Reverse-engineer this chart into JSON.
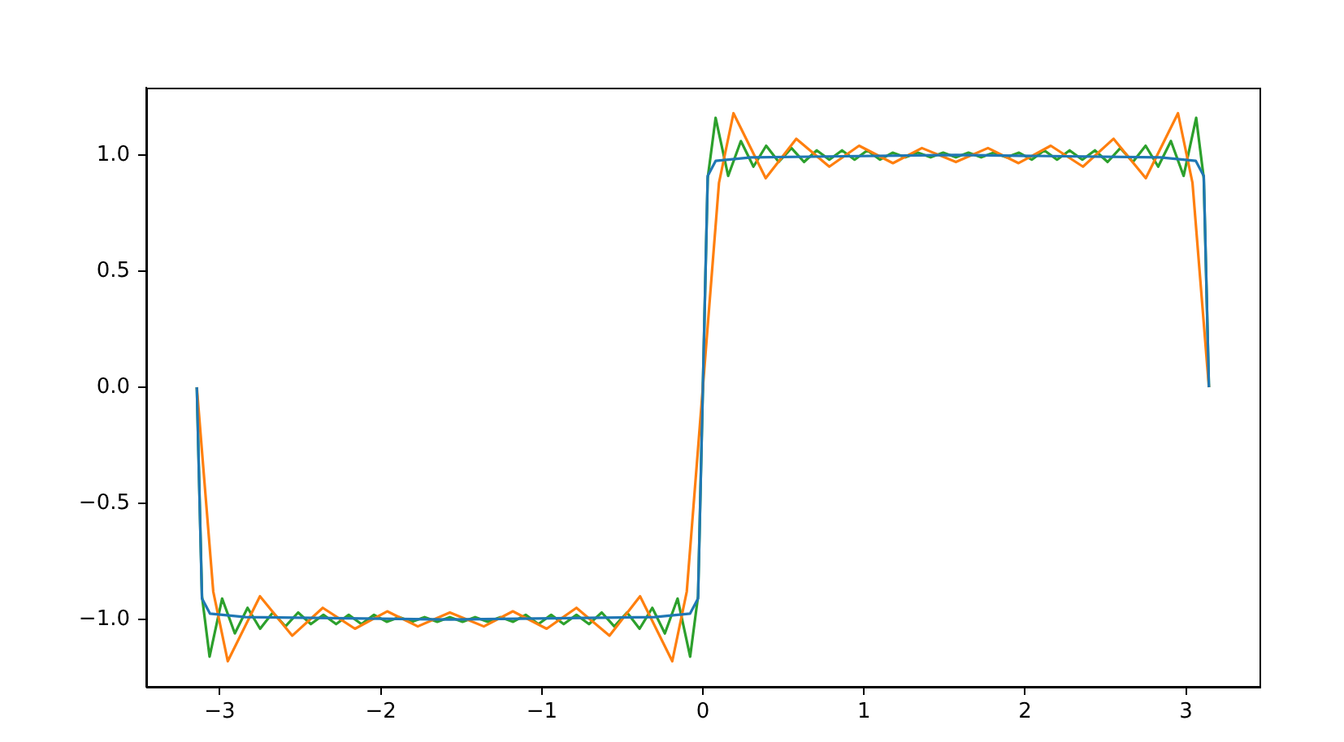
{
  "chart_data": {
    "type": "line",
    "xlim": [
      -3.456,
      3.456
    ],
    "ylim": [
      -1.29,
      1.29
    ],
    "xticks": [
      {
        "value": -3,
        "label": "−3"
      },
      {
        "value": -2,
        "label": "−2"
      },
      {
        "value": -1,
        "label": "−1"
      },
      0,
      1,
      2,
      3
    ],
    "yticks": [
      {
        "value": -1,
        "label": "−1.0"
      },
      {
        "value": -0.5,
        "label": "−0.5"
      },
      {
        "value": 0,
        "label": "0.0"
      },
      {
        "value": 0.5,
        "label": "0.5"
      },
      {
        "value": 1,
        "label": "1.0"
      }
    ],
    "grid": false,
    "legend": false,
    "marker": "none",
    "line_style": "solid",
    "series": [
      {
        "color": "#1f77b4",
        "x": [
          -3.142,
          -3.11,
          -3.06,
          -2.84,
          -1.571,
          -0.3,
          -0.08,
          -0.03,
          0,
          0.03,
          0.08,
          0.3,
          1.571,
          2.84,
          3.06,
          3.11,
          3.142
        ],
        "values": [
          0,
          -0.91,
          -0.975,
          -0.99,
          -1,
          -0.99,
          -0.975,
          -0.91,
          0,
          0.91,
          0.975,
          0.99,
          1,
          0.99,
          0.975,
          0.91,
          0
        ]
      },
      {
        "color": "#ff7f0e",
        "x": [
          -3.142,
          -3.04,
          -2.95,
          -2.75,
          -2.55,
          -2.36,
          -2.16,
          -1.96,
          -1.77,
          -1.571,
          -1.36,
          -1.18,
          -0.97,
          -0.785,
          -0.58,
          -0.39,
          -0.19,
          -0.1,
          0,
          0.1,
          0.19,
          0.39,
          0.58,
          0.785,
          0.97,
          1.18,
          1.36,
          1.571,
          1.77,
          1.96,
          2.16,
          2.36,
          2.55,
          2.75,
          2.95,
          3.04,
          3.142
        ],
        "values": [
          0,
          -0.88,
          -1.18,
          -0.9,
          -1.07,
          -0.95,
          -1.04,
          -0.965,
          -1.03,
          -0.97,
          -1.03,
          -0.965,
          -1.04,
          -0.95,
          -1.07,
          -0.9,
          -1.18,
          -0.88,
          0,
          0.88,
          1.18,
          0.9,
          1.07,
          0.95,
          1.04,
          0.965,
          1.03,
          0.97,
          1.03,
          0.965,
          1.04,
          0.95,
          1.07,
          0.9,
          1.18,
          0.88,
          0
        ]
      },
      {
        "color": "#2ca02c",
        "x": [
          -3.142,
          -3.11,
          -3.063,
          -2.985,
          -2.906,
          -2.827,
          -2.749,
          -2.67,
          -2.592,
          -2.513,
          -2.434,
          -2.356,
          -2.277,
          -2.199,
          -2.12,
          -2.042,
          -1.963,
          -1.885,
          -1.806,
          -1.728,
          -1.649,
          -1.571,
          -1.492,
          -1.414,
          -1.335,
          -1.257,
          -1.178,
          -1.1,
          -1.021,
          -0.942,
          -0.864,
          -0.785,
          -0.707,
          -0.628,
          -0.55,
          -0.471,
          -0.393,
          -0.314,
          -0.236,
          -0.157,
          -0.079,
          -0.03,
          0,
          0.03,
          0.079,
          0.157,
          0.236,
          0.314,
          0.393,
          0.471,
          0.55,
          0.628,
          0.707,
          0.785,
          0.864,
          0.942,
          1.021,
          1.1,
          1.178,
          1.257,
          1.335,
          1.414,
          1.492,
          1.571,
          1.649,
          1.728,
          1.806,
          1.885,
          1.963,
          2.042,
          2.12,
          2.199,
          2.277,
          2.356,
          2.434,
          2.513,
          2.592,
          2.67,
          2.749,
          2.827,
          2.906,
          2.985,
          3.063,
          3.11,
          3.142
        ],
        "values": [
          0,
          -0.9,
          -1.16,
          -0.91,
          -1.06,
          -0.95,
          -1.04,
          -0.97,
          -1.03,
          -0.97,
          -1.02,
          -0.98,
          -1.02,
          -0.98,
          -1.02,
          -0.98,
          -1.01,
          -0.99,
          -1.01,
          -0.99,
          -1.01,
          -0.99,
          -1.01,
          -0.99,
          -1.01,
          -0.99,
          -1.01,
          -0.98,
          -1.02,
          -0.98,
          -1.02,
          -0.98,
          -1.02,
          -0.97,
          -1.03,
          -0.97,
          -1.04,
          -0.95,
          -1.06,
          -0.91,
          -1.16,
          -0.9,
          0,
          0.9,
          1.16,
          0.91,
          1.06,
          0.95,
          1.04,
          0.97,
          1.03,
          0.97,
          1.02,
          0.98,
          1.02,
          0.98,
          1.02,
          0.98,
          1.01,
          0.99,
          1.01,
          0.99,
          1.01,
          0.99,
          1.01,
          0.99,
          1.01,
          0.99,
          1.01,
          0.98,
          1.02,
          0.98,
          1.02,
          0.98,
          1.02,
          0.97,
          1.03,
          0.97,
          1.04,
          0.95,
          1.06,
          0.91,
          1.16,
          0.9,
          0
        ]
      }
    ]
  }
}
